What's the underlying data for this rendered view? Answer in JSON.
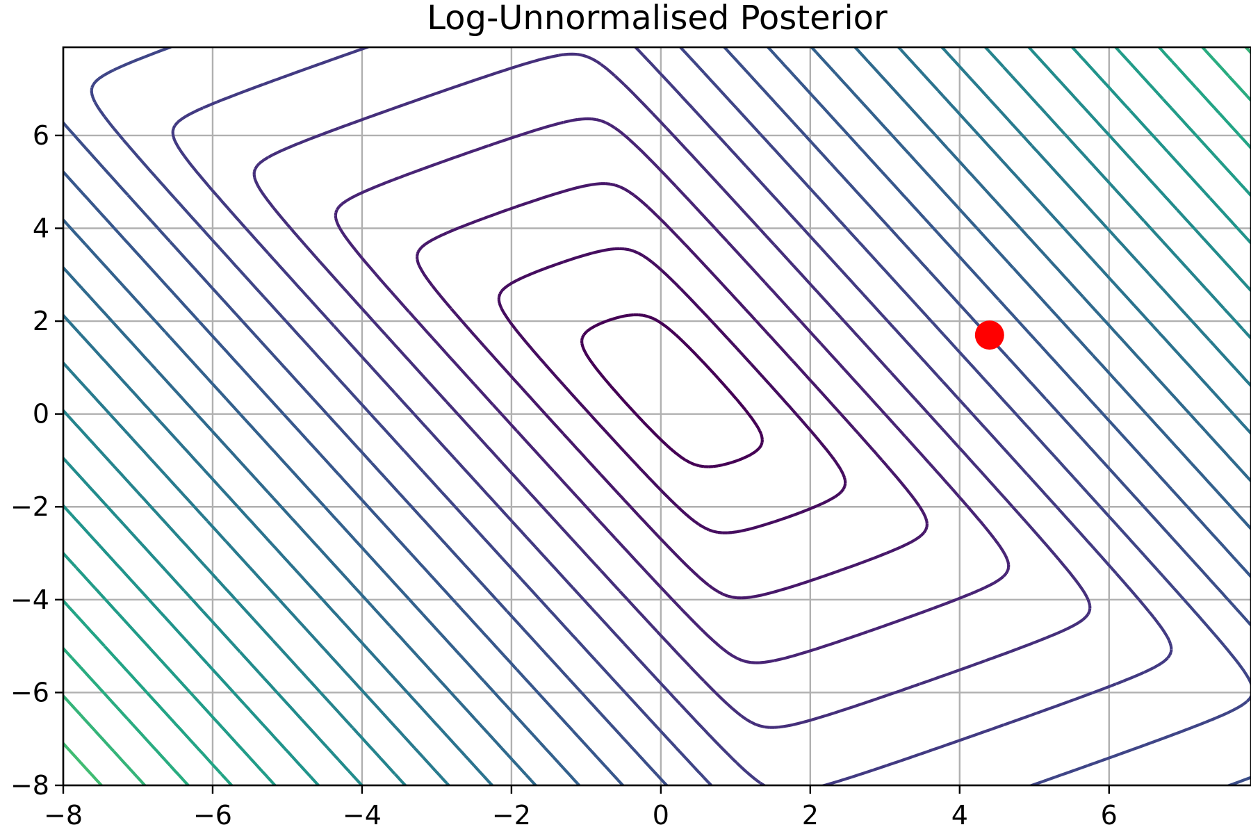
{
  "chart_data": {
    "type": "contour",
    "title": "Log-Unnormalised Posterior",
    "xlabel": "",
    "ylabel": "",
    "xlim": [
      -8,
      7.9
    ],
    "ylim": [
      -8,
      7.9
    ],
    "x_ticks": [
      -8,
      -6,
      -4,
      -2,
      0,
      2,
      4,
      6
    ],
    "y_ticks": [
      -8,
      -6,
      -4,
      -2,
      0,
      2,
      4,
      6
    ],
    "x_tick_labels": [
      "−8",
      "−6",
      "−4",
      "−2",
      "0",
      "2",
      "4",
      "6"
    ],
    "y_tick_labels": [
      "−8",
      "−6",
      "−4",
      "−2",
      "0",
      "2",
      "4",
      "6"
    ],
    "grid": true,
    "colormap": "viridis",
    "contour_levels": 30,
    "contour_color_range": [
      "#440154",
      "#dde318"
    ],
    "marker": {
      "x": 4.4,
      "y": 1.7,
      "color": "#ff0000",
      "shape": "circle"
    }
  }
}
